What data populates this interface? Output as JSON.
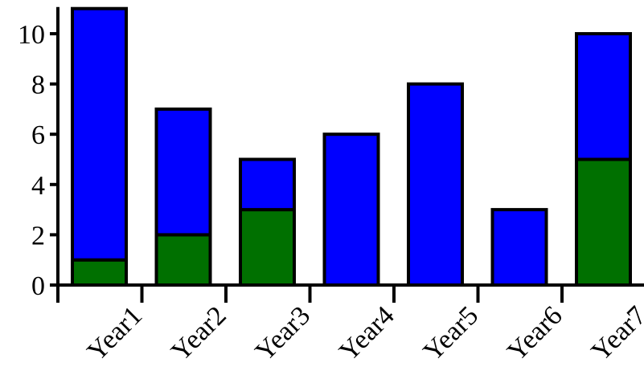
{
  "chart_data": {
    "type": "bar",
    "stacked": true,
    "categories": [
      "Year1",
      "Year2",
      "Year3",
      "Year4",
      "Year5",
      "Year6",
      "Year7"
    ],
    "series": [
      {
        "values": [
          1,
          2,
          3,
          0,
          0,
          0,
          5
        ],
        "color": "#007000"
      },
      {
        "values": [
          10,
          5,
          2,
          6,
          8,
          3,
          5
        ],
        "color": "#0000FF"
      }
    ],
    "title": "",
    "xlabel": "",
    "ylabel": "",
    "ylim": [
      0,
      11
    ],
    "yticks": [
      "0",
      "2",
      "4",
      "6",
      "8",
      "10"
    ],
    "grid": false,
    "legend": "none"
  }
}
